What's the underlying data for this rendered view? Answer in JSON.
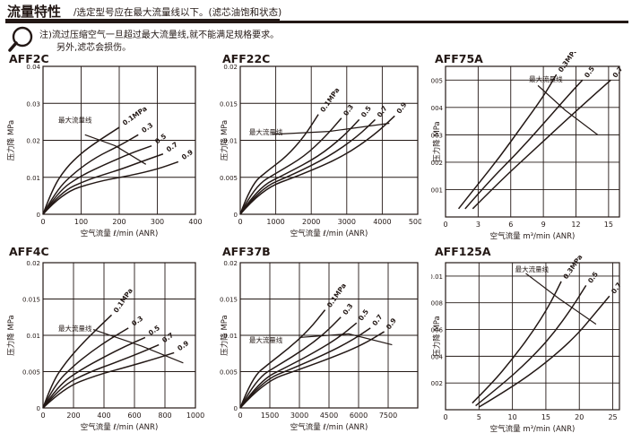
{
  "header": {
    "title": "流量特性",
    "subtitle": "/选定型号应在最大流量线以下。(滤芯油饱和状态)"
  },
  "note": {
    "icon": "magnifier-icon",
    "line1": "注)流过压缩空气一旦超过最大流量线,就不能满足规格要求。",
    "line2": "另外,滤芯会损伤。"
  },
  "chart_data": [
    {
      "type": "line",
      "title": "AFF2C",
      "xlabel": "空气流量 ℓ/min (ANR)",
      "ylabel": "压力降 MPa",
      "xlim": [
        0,
        400
      ],
      "ylim": [
        0,
        0.04
      ],
      "xticks": [
        "0",
        "100",
        "200",
        "300",
        "400"
      ],
      "yticks": [
        "0",
        "0.01",
        "0.02",
        "0.03",
        "0.04"
      ],
      "max_flow_label": "最大流量线",
      "max_flow_line": [
        [
          110,
          0.0215
        ],
        [
          190,
          0.0185
        ],
        [
          270,
          0.0135
        ]
      ],
      "series": [
        {
          "name": "0.1MPa",
          "points": [
            [
              0,
              0
            ],
            [
              25,
              0.007
            ],
            [
              60,
              0.0125
            ],
            [
              100,
              0.0165
            ],
            [
              140,
              0.0195
            ],
            [
              200,
              0.0235
            ]
          ]
        },
        {
          "name": "0.3",
          "points": [
            [
              0,
              0
            ],
            [
              35,
              0.0065
            ],
            [
              85,
              0.0115
            ],
            [
              140,
              0.0155
            ],
            [
              200,
              0.0185
            ],
            [
              250,
              0.0215
            ]
          ]
        },
        {
          "name": "0.5",
          "points": [
            [
              0,
              0
            ],
            [
              40,
              0.0062
            ],
            [
              100,
              0.0105
            ],
            [
              170,
              0.0138
            ],
            [
              230,
              0.0165
            ],
            [
              285,
              0.0185
            ]
          ]
        },
        {
          "name": "0.7",
          "points": [
            [
              0,
              0
            ],
            [
              45,
              0.006
            ],
            [
              120,
              0.0095
            ],
            [
              200,
              0.012
            ],
            [
              260,
              0.0143
            ],
            [
              315,
              0.0163
            ]
          ]
        },
        {
          "name": "0.9",
          "points": [
            [
              0,
              0
            ],
            [
              50,
              0.0058
            ],
            [
              140,
              0.0088
            ],
            [
              230,
              0.0105
            ],
            [
              300,
              0.0122
            ],
            [
              355,
              0.0142
            ]
          ]
        }
      ]
    },
    {
      "type": "line",
      "title": "AFF22C",
      "xlabel": "空气流量 ℓ/min (ANR)",
      "ylabel": "压力降 MPa",
      "xlim": [
        0,
        5000
      ],
      "ylim": [
        0,
        0.02
      ],
      "xticks": [
        "0",
        "1000",
        "2000",
        "3000",
        "4000",
        "5000"
      ],
      "yticks": [
        "0",
        "0.005",
        "0.01",
        "0.015",
        "0.02"
      ],
      "max_flow_label": "最大流量线",
      "max_flow_line": [
        [
          900,
          0.0108
        ],
        [
          2500,
          0.0112
        ],
        [
          4200,
          0.0123
        ]
      ],
      "series": [
        {
          "name": "0.1MPa",
          "points": [
            [
              0,
              0
            ],
            [
              300,
              0.004
            ],
            [
              800,
              0.006
            ],
            [
              1300,
              0.0078
            ],
            [
              1800,
              0.0105
            ],
            [
              2200,
              0.0135
            ]
          ]
        },
        {
          "name": "0.3",
          "points": [
            [
              0,
              0
            ],
            [
              400,
              0.0038
            ],
            [
              1100,
              0.0058
            ],
            [
              1800,
              0.0078
            ],
            [
              2400,
              0.0105
            ],
            [
              2850,
              0.013
            ]
          ]
        },
        {
          "name": "0.5",
          "points": [
            [
              0,
              0
            ],
            [
              500,
              0.0036
            ],
            [
              1300,
              0.0055
            ],
            [
              2200,
              0.0078
            ],
            [
              2900,
              0.0105
            ],
            [
              3350,
              0.0128
            ]
          ]
        },
        {
          "name": "0.7",
          "points": [
            [
              0,
              0
            ],
            [
              550,
              0.0035
            ],
            [
              1500,
              0.0054
            ],
            [
              2500,
              0.0078
            ],
            [
              3300,
              0.0105
            ],
            [
              3800,
              0.0128
            ]
          ]
        },
        {
          "name": "0.9",
          "points": [
            [
              0,
              0
            ],
            [
              600,
              0.0034
            ],
            [
              1700,
              0.0053
            ],
            [
              2900,
              0.0078
            ],
            [
              3800,
              0.0108
            ],
            [
              4350,
              0.0133
            ]
          ]
        }
      ]
    },
    {
      "type": "line",
      "title": "AFF75A",
      "xlabel": "空气流量 m³/min (ANR)",
      "ylabel": "压力降 MPa",
      "xlim": [
        0,
        16
      ],
      "ylim": [
        0,
        0.0055
      ],
      "xticks": [
        "0",
        "3",
        "6",
        "9",
        "12",
        "15"
      ],
      "yticks": [
        "0.001",
        "0.002",
        "0.003",
        "0.004",
        "0.005"
      ],
      "max_flow_label": "最大流量线",
      "max_flow_line": [
        [
          8.5,
          0.0048
        ],
        [
          11,
          0.0039
        ],
        [
          14,
          0.003
        ]
      ],
      "series": [
        {
          "name": "0.3MPa",
          "points": [
            [
              1.2,
              0.0003
            ],
            [
              3,
              0.0012
            ],
            [
              5,
              0.0022
            ],
            [
              7,
              0.0033
            ],
            [
              9,
              0.0044
            ],
            [
              10.2,
              0.0052
            ]
          ]
        },
        {
          "name": "0.5",
          "points": [
            [
              1.8,
              0.0003
            ],
            [
              4,
              0.0013
            ],
            [
              6.5,
              0.0023
            ],
            [
              9,
              0.0034
            ],
            [
              11.2,
              0.0044
            ],
            [
              12.6,
              0.005
            ]
          ]
        },
        {
          "name": "0.7",
          "points": [
            [
              2.5,
              0.0003
            ],
            [
              5,
              0.0013
            ],
            [
              8,
              0.0024
            ],
            [
              11,
              0.0035
            ],
            [
              13.5,
              0.0044
            ],
            [
              15.2,
              0.005
            ]
          ]
        }
      ]
    },
    {
      "type": "line",
      "title": "AFF4C",
      "xlabel": "空气流量 ℓ/min (ANR)",
      "ylabel": "压力降 MPa",
      "xlim": [
        0,
        1000
      ],
      "ylim": [
        0,
        0.02
      ],
      "xticks": [
        "0",
        "200",
        "400",
        "600",
        "800",
        "1000"
      ],
      "yticks": [
        "0",
        "0.005",
        "0.01",
        "0.015",
        "0.02"
      ],
      "max_flow_label": "最大流量线",
      "max_flow_line": [
        [
          330,
          0.0108
        ],
        [
          650,
          0.0085
        ],
        [
          920,
          0.0062
        ]
      ],
      "series": [
        {
          "name": "0.1MPa",
          "points": [
            [
              0,
              0
            ],
            [
              60,
              0.0035
            ],
            [
              150,
              0.0063
            ],
            [
              250,
              0.0087
            ],
            [
              350,
              0.0108
            ],
            [
              450,
              0.0128
            ]
          ]
        },
        {
          "name": "0.3",
          "points": [
            [
              0,
              0
            ],
            [
              80,
              0.0033
            ],
            [
              200,
              0.0058
            ],
            [
              320,
              0.0078
            ],
            [
              440,
              0.0095
            ],
            [
              560,
              0.011
            ]
          ]
        },
        {
          "name": "0.5",
          "points": [
            [
              0,
              0
            ],
            [
              100,
              0.0031
            ],
            [
              250,
              0.0053
            ],
            [
              400,
              0.007
            ],
            [
              540,
              0.0085
            ],
            [
              670,
              0.0097
            ]
          ]
        },
        {
          "name": "0.7",
          "points": [
            [
              0,
              0
            ],
            [
              120,
              0.003
            ],
            [
              300,
              0.0049
            ],
            [
              480,
              0.0063
            ],
            [
              640,
              0.0076
            ],
            [
              760,
              0.0087
            ]
          ]
        },
        {
          "name": "0.9",
          "points": [
            [
              0,
              0
            ],
            [
              140,
              0.0028
            ],
            [
              350,
              0.0045
            ],
            [
              560,
              0.0057
            ],
            [
              740,
              0.0068
            ],
            [
              860,
              0.0076
            ]
          ]
        }
      ]
    },
    {
      "type": "line",
      "title": "AFF37B",
      "xlabel": "空气流量 ℓ/min (ANR)",
      "ylabel": "压力降 MPa",
      "xlim": [
        0,
        9000
      ],
      "ylim": [
        0,
        0.02
      ],
      "xticks": [
        "0",
        "1500",
        "3000",
        "4500",
        "6000",
        "7500"
      ],
      "yticks": [
        "0",
        "0.005",
        "0.01",
        "0.015",
        "0.02"
      ],
      "max_flow_label": "最大流量线",
      "max_flow_line": [
        [
          3000,
          0.0097
        ],
        [
          5500,
          0.0102
        ],
        [
          7700,
          0.0087
        ]
      ],
      "series": [
        {
          "name": "0.1MPa",
          "points": [
            [
              0,
              0
            ],
            [
              600,
              0.0042
            ],
            [
              1500,
              0.0062
            ],
            [
              2500,
              0.0083
            ],
            [
              3500,
              0.0108
            ],
            [
              4300,
              0.0135
            ]
          ]
        },
        {
          "name": "0.3",
          "points": [
            [
              0,
              0
            ],
            [
              800,
              0.004
            ],
            [
              2000,
              0.006
            ],
            [
              3200,
              0.008
            ],
            [
              4300,
              0.0103
            ],
            [
              5100,
              0.0125
            ]
          ]
        },
        {
          "name": "0.5",
          "points": [
            [
              0,
              0
            ],
            [
              1000,
              0.0038
            ],
            [
              2400,
              0.0057
            ],
            [
              3800,
              0.0077
            ],
            [
              5000,
              0.0097
            ],
            [
              5900,
              0.0117
            ]
          ]
        },
        {
          "name": "0.7",
          "points": [
            [
              0,
              0
            ],
            [
              1100,
              0.0037
            ],
            [
              2700,
              0.0055
            ],
            [
              4300,
              0.0074
            ],
            [
              5600,
              0.0092
            ],
            [
              6600,
              0.011
            ]
          ]
        },
        {
          "name": "0.9",
          "points": [
            [
              0,
              0
            ],
            [
              1200,
              0.0036
            ],
            [
              3000,
              0.0053
            ],
            [
              4800,
              0.0071
            ],
            [
              6200,
              0.0087
            ],
            [
              7300,
              0.0105
            ]
          ]
        }
      ]
    },
    {
      "type": "line",
      "title": "AFF125A",
      "xlabel": "空气流量 m³/min (ANR)",
      "ylabel": "压力降 MPa",
      "xlim": [
        0,
        26
      ],
      "ylim": [
        0,
        0.011
      ],
      "xticks": [
        "0",
        "5",
        "10",
        "15",
        "20",
        "25"
      ],
      "yticks": [
        "0.002",
        "0.004",
        "0.006",
        "0.008",
        "0.01"
      ],
      "max_flow_label": "最大流量线",
      "max_flow_line": [
        [
          12,
          0.0102
        ],
        [
          17,
          0.0083
        ],
        [
          22.5,
          0.0064
        ]
      ],
      "series": [
        {
          "name": "0.3MPa",
          "points": [
            [
              4,
              0.0005
            ],
            [
              7,
              0.002
            ],
            [
              10,
              0.0038
            ],
            [
              13,
              0.0058
            ],
            [
              15.5,
              0.0078
            ],
            [
              17.3,
              0.0096
            ]
          ]
        },
        {
          "name": "0.5",
          "points": [
            [
              4.5,
              0.0003
            ],
            [
              8.5,
              0.0019
            ],
            [
              12.5,
              0.0037
            ],
            [
              16,
              0.0056
            ],
            [
              19,
              0.0077
            ],
            [
              21,
              0.0093
            ]
          ]
        },
        {
          "name": "0.7",
          "points": [
            [
              5,
              0.0002
            ],
            [
              10,
              0.0017
            ],
            [
              15,
              0.0035
            ],
            [
              19.5,
              0.0055
            ],
            [
              22.5,
              0.0073
            ],
            [
              24.5,
              0.0085
            ]
          ]
        }
      ]
    }
  ]
}
